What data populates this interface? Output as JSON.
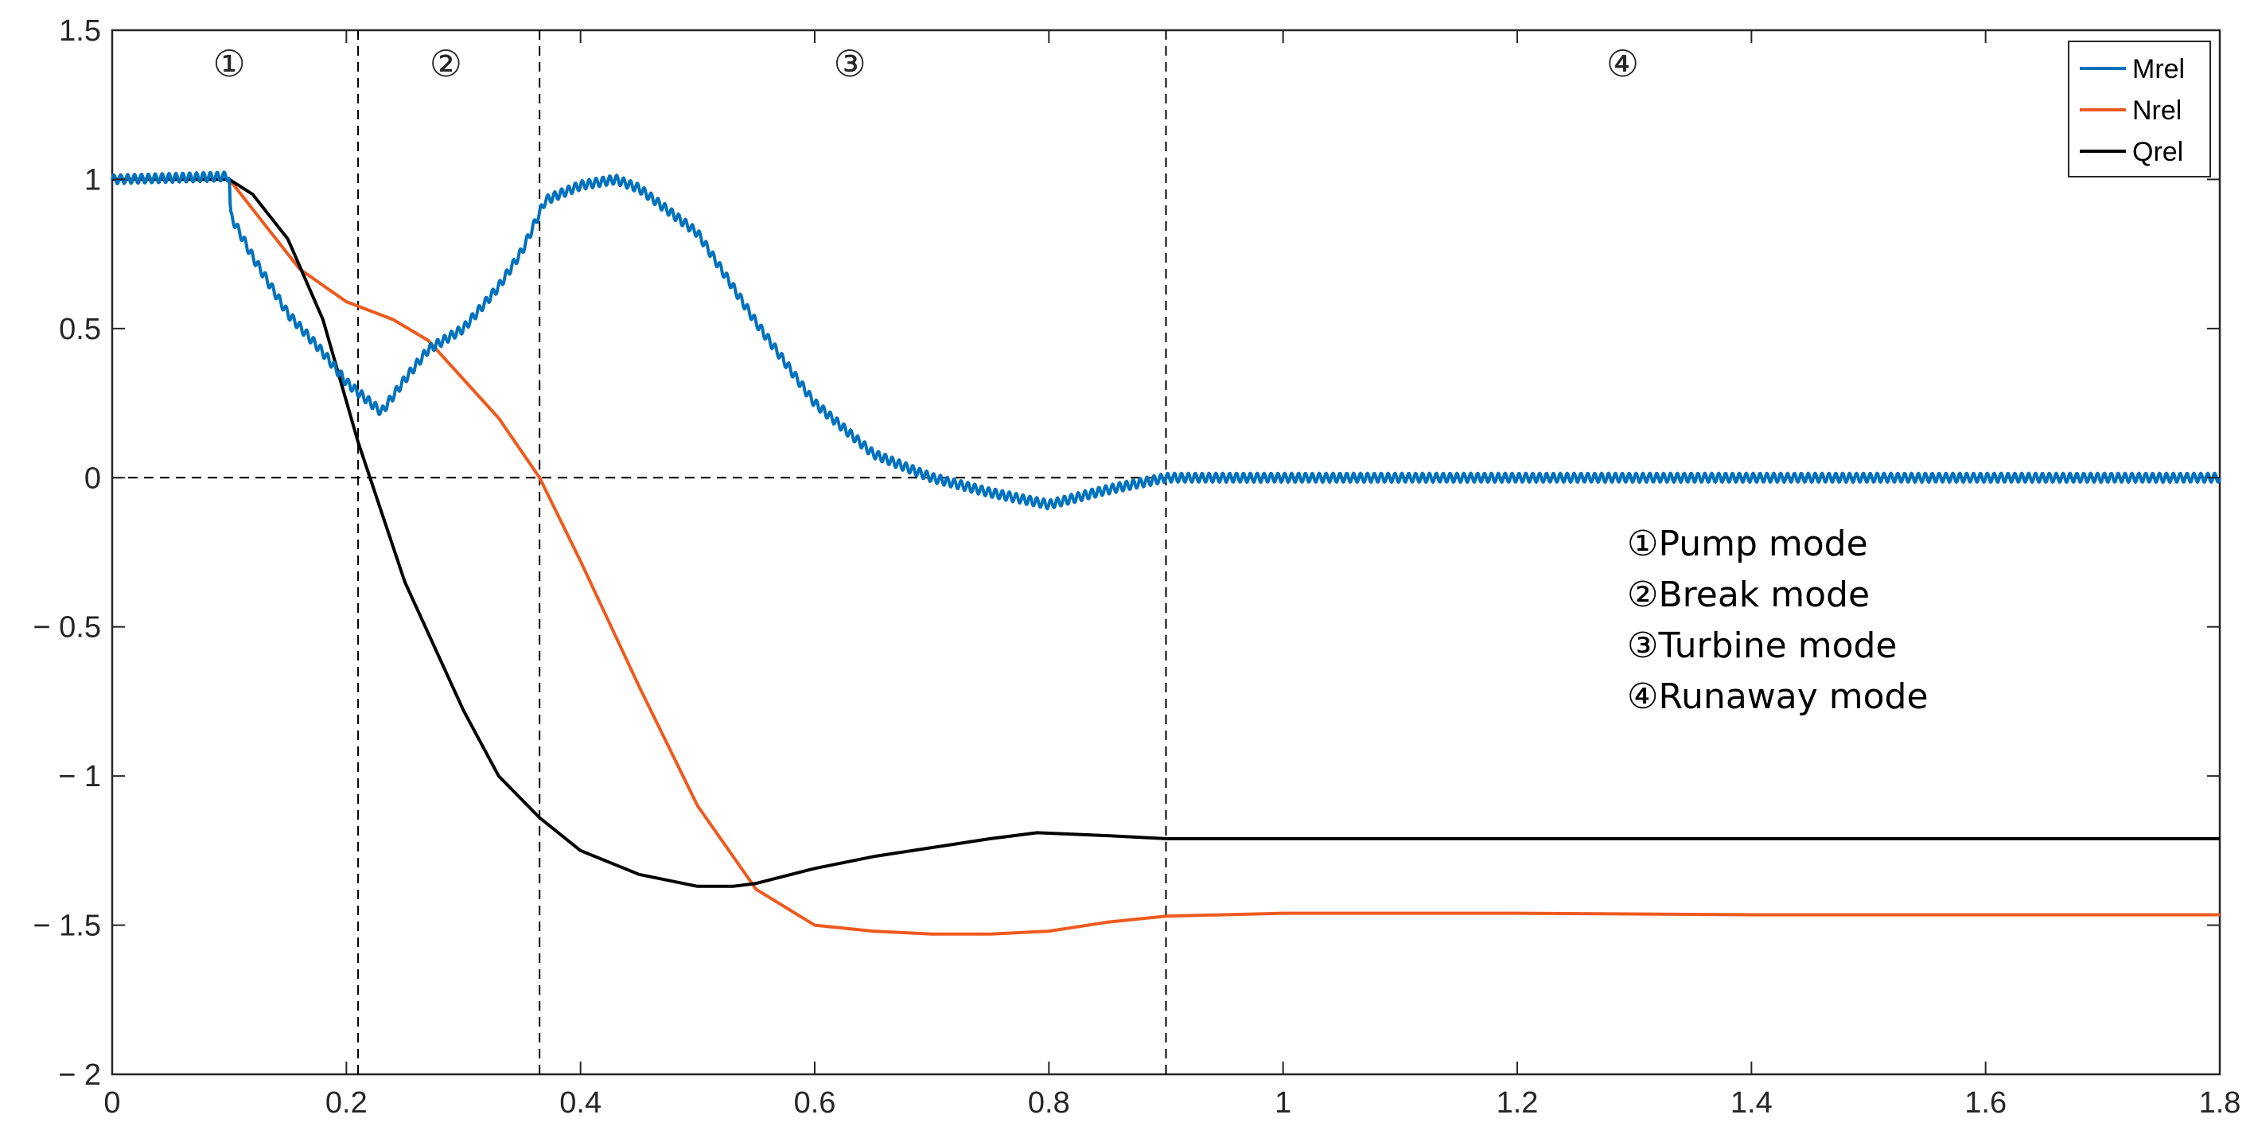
{
  "chart_data": {
    "type": "line",
    "title": "",
    "xlabel": "",
    "ylabel": "",
    "xlim": [
      0,
      1.8
    ],
    "ylim": [
      -2,
      1.5
    ],
    "x_ticks": [
      0,
      0.2,
      0.4,
      0.6,
      0.8,
      1,
      1.2,
      1.4,
      1.6,
      1.8
    ],
    "x_tick_labels": [
      "0",
      "0.2",
      "0.4",
      "0.6",
      "0.8",
      "1",
      "1.2",
      "1.4",
      "1.6",
      "1.8"
    ],
    "y_ticks": [
      1.5,
      1,
      0.5,
      0,
      -0.5,
      -1,
      -1.5,
      -2
    ],
    "y_tick_labels": [
      "1.5",
      "1",
      "0.5",
      "0",
      "− 0.5",
      "− 1",
      "− 1.5",
      "− 2"
    ],
    "grid": false,
    "legend_position": "top-right",
    "series": [
      {
        "name": "Mrel",
        "color": "#0072BD",
        "ripple_start": 0,
        "ripple_amplitude": 0.015,
        "ripple_frequency": 170,
        "x": [
          0,
          0.1,
          0.101,
          0.12,
          0.15,
          0.18,
          0.2,
          0.23,
          0.25,
          0.27,
          0.3,
          0.33,
          0.35,
          0.37,
          0.4,
          0.43,
          0.45,
          0.5,
          0.55,
          0.6,
          0.65,
          0.7,
          0.75,
          0.8,
          0.85,
          0.9,
          1.0,
          1.2,
          1.4,
          1.6,
          1.8
        ],
        "y": [
          1.0,
          1.01,
          0.88,
          0.74,
          0.55,
          0.42,
          0.32,
          0.22,
          0.33,
          0.43,
          0.5,
          0.64,
          0.76,
          0.93,
          0.98,
          1.0,
          0.97,
          0.82,
          0.52,
          0.25,
          0.08,
          0.0,
          -0.05,
          -0.09,
          -0.04,
          0.0,
          0.0,
          0.0,
          0.0,
          0.0,
          0.0
        ]
      },
      {
        "name": "Nrel",
        "color": "#EE5A1E",
        "x": [
          0,
          0.1,
          0.13,
          0.16,
          0.2,
          0.24,
          0.27,
          0.3,
          0.33,
          0.365,
          0.4,
          0.45,
          0.5,
          0.55,
          0.6,
          0.65,
          0.7,
          0.75,
          0.8,
          0.85,
          0.9,
          1.0,
          1.2,
          1.4,
          1.6,
          1.8
        ],
        "y": [
          1.0,
          1.0,
          0.85,
          0.7,
          0.59,
          0.53,
          0.46,
          0.33,
          0.2,
          0.0,
          -0.28,
          -0.7,
          -1.1,
          -1.38,
          -1.5,
          -1.52,
          -1.53,
          -1.53,
          -1.52,
          -1.49,
          -1.47,
          -1.46,
          -1.46,
          -1.465,
          -1.465,
          -1.465
        ]
      },
      {
        "name": "Qrel",
        "color": "#000000",
        "x": [
          0,
          0.1,
          0.12,
          0.15,
          0.18,
          0.21,
          0.25,
          0.3,
          0.33,
          0.365,
          0.4,
          0.45,
          0.5,
          0.53,
          0.55,
          0.6,
          0.65,
          0.7,
          0.75,
          0.79,
          0.85,
          0.9,
          1.0,
          1.2,
          1.4,
          1.6,
          1.8
        ],
        "y": [
          1.0,
          1.0,
          0.95,
          0.8,
          0.53,
          0.12,
          -0.35,
          -0.78,
          -1.0,
          -1.14,
          -1.25,
          -1.33,
          -1.37,
          -1.37,
          -1.36,
          -1.31,
          -1.27,
          -1.24,
          -1.21,
          -1.19,
          -1.2,
          -1.21,
          -1.21,
          -1.21,
          -1.21,
          -1.21,
          -1.21
        ]
      }
    ],
    "vertical_dashed_lines_x": [
      0.21,
      0.365,
      0.9
    ],
    "horizontal_dashed_line_y": 0,
    "region_labels": [
      {
        "text": "①",
        "x": 0.1
      },
      {
        "text": "②",
        "x": 0.285
      },
      {
        "text": "③",
        "x": 0.63
      },
      {
        "text": "④",
        "x": 1.29
      }
    ],
    "annotation_lines": [
      "①Pump mode",
      "②Break mode",
      "③Turbine mode",
      "④Runaway mode"
    ]
  }
}
